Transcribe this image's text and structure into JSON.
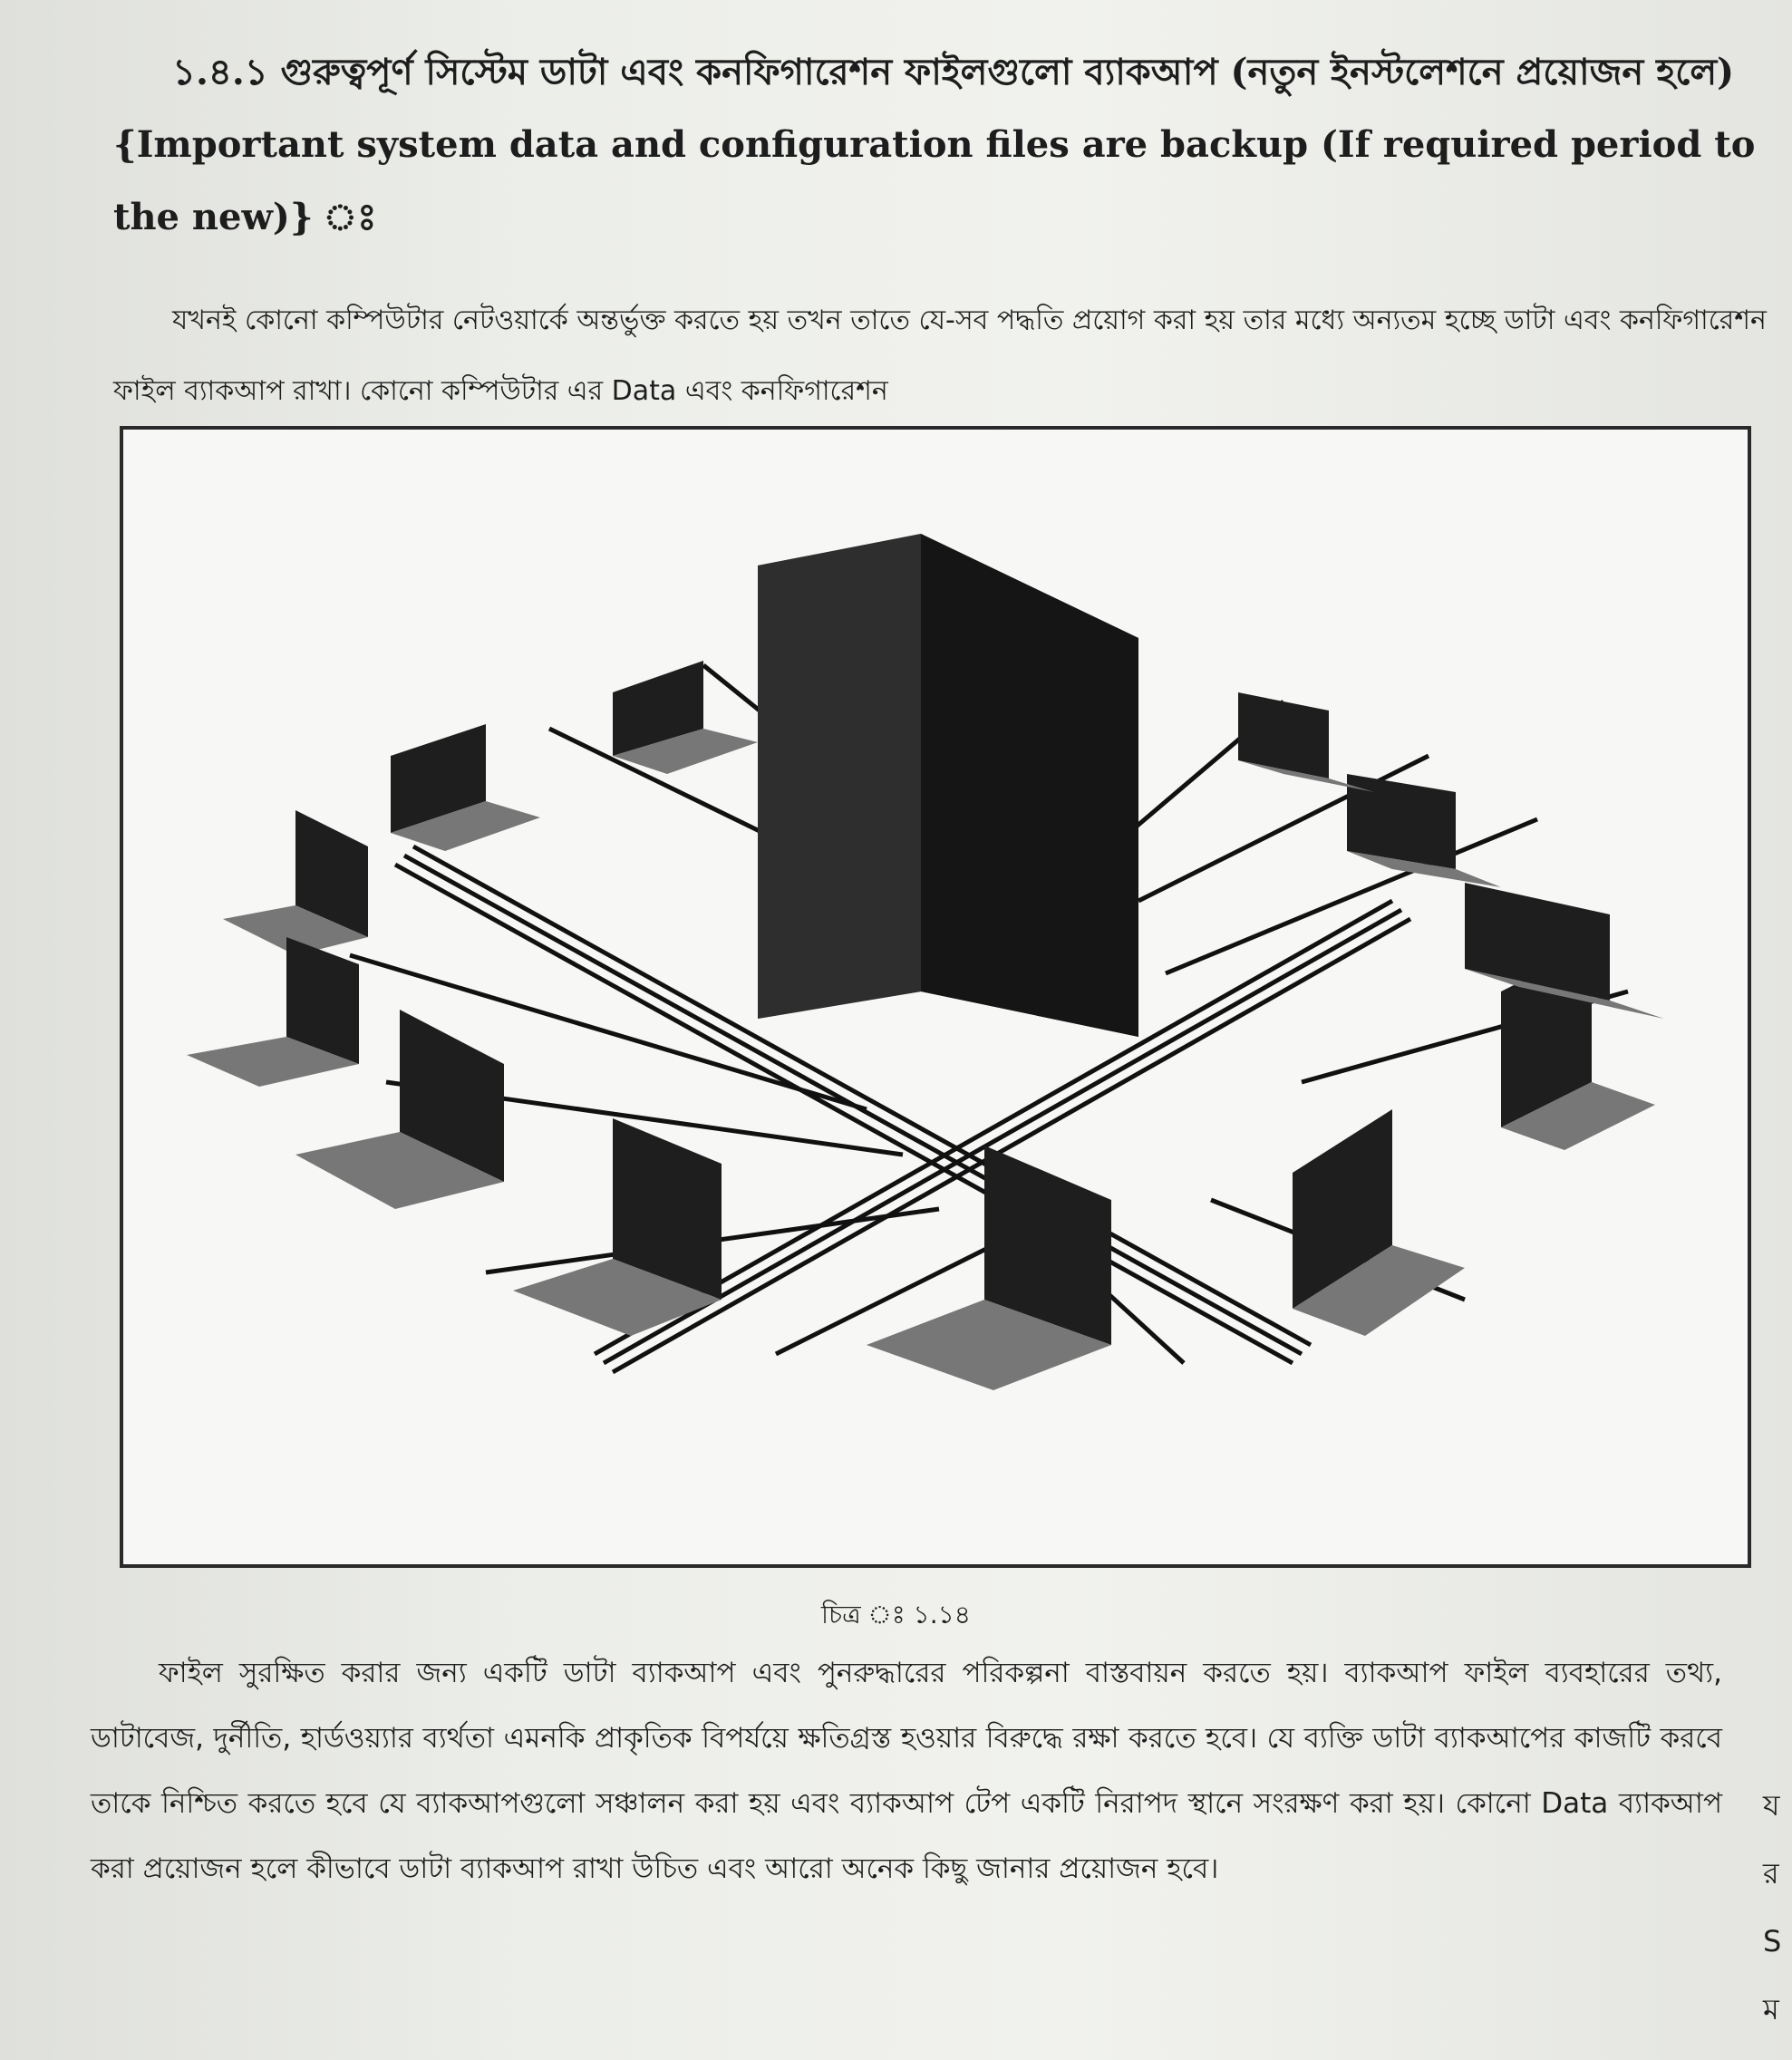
{
  "heading": {
    "number": "১.৪.১",
    "text": "গুরুত্বপূর্ণ সিস্টেম ডাটা এবং কনফিগারেশন ফাইলগুলো ব্যাকআপ (নতুন ইনস্টলেশনে প্রয়োজন হলে) {Important system data and configuration files are backup (If required period to the new)} ঃ"
  },
  "paragraph1": "যখনই কোনো কম্পিউটার নেটওয়ার্কে অন্তর্ভুক্ত করতে হয় তখন তাতে যে-সব পদ্ধতি প্রয়োগ করা হয় তার মধ্যে অন্যতম হচ্ছে ডাটা এবং কনফিগারেশন ফাইল ব্যাকআপ রাখা। কোনো কম্পিউটার এর Data এবং কনফিগারেশন",
  "figure": {
    "caption": "চিত্র ঃ ১.১৪"
  },
  "paragraph2": "ফাইল সুরক্ষিত করার জন্য একটি ডাটা ব্যাকআপ এবং পুনরুদ্ধারের পরিকল্পনা বাস্তবায়ন করতে হয়। ব্যাকআপ ফাইল ব্যবহারের তথ্য, ডাটাবেজ, দুর্নীতি, হার্ডওয়্যার ব্যর্থতা এমনকি প্রাকৃতিক বিপর্যয়ে ক্ষতিগ্রস্ত হওয়ার বিরুদ্ধে রক্ষা করতে হবে। যে ব্যক্তি ডাটা ব্যাকআপের কাজটি করবে তাকে নিশ্চিত করতে হবে যে ব্যাকআপগুলো সঞ্চালন করা হয় এবং ব্যাকআপ টেপ একটি নিরাপদ স্থানে সংরক্ষণ করা হয়। কোনো Data ব্যাকআপ করা প্রয়োজন হলে কীভাবে ডাটা ব্যাকআপ রাখা উচিত এবং আরো অনেক কিছু জানার প্রয়োজন হবে।",
  "margin_glyphs": [
    "য",
    "র",
    "S",
    "ম"
  ]
}
